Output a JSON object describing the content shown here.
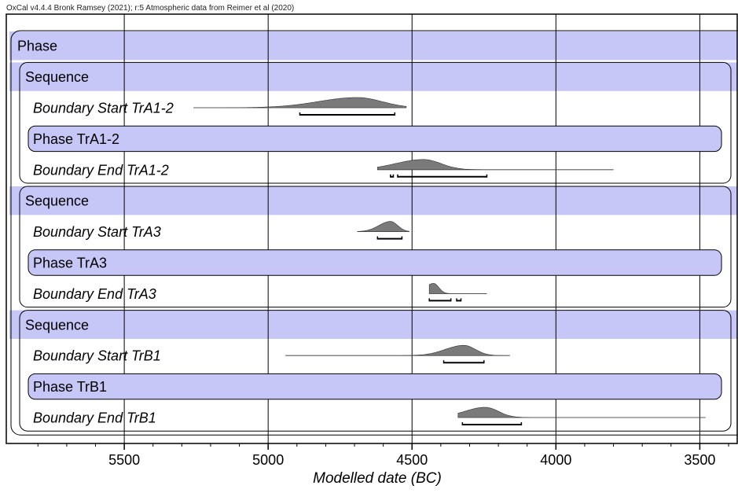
{
  "header_note": "OxCal v4.4.4 Bronk Ramsey (2021); r:5 Atmospheric data from Reimer et al (2020)",
  "chart_data": {
    "type": "area",
    "title": "",
    "xlabel": "Modelled date (BC)",
    "ylabel": "",
    "xlim": [
      5910,
      3370
    ],
    "x_ticks": [
      5500,
      5000,
      4500,
      4000,
      3500
    ],
    "grid": true,
    "colors": {
      "phase_fill": "#c6c6f7",
      "distribution_fill": "#7a7a7a",
      "line": "#000000"
    },
    "rows": [
      {
        "label": "Phase",
        "kind": "phase",
        "italic": false
      },
      {
        "label": "Sequence",
        "kind": "sequence",
        "italic": false
      },
      {
        "label": "Boundary Start TrA1-2",
        "kind": "boundary",
        "italic": true,
        "tail": [
          5260,
          4520
        ],
        "peak": 4690,
        "spread": 85,
        "hpd": [
          [
            4890,
            4560
          ]
        ]
      },
      {
        "label": "Phase TrA1-2",
        "kind": "phase",
        "italic": false
      },
      {
        "label": "Boundary End TrA1-2",
        "kind": "boundary",
        "italic": true,
        "tail": [
          4620,
          3800
        ],
        "peak": 4460,
        "spread": 60,
        "hpd": [
          [
            4575,
            4565
          ],
          [
            4550,
            4240
          ]
        ]
      },
      {
        "label": "Sequence",
        "kind": "sequence",
        "italic": false
      },
      {
        "label": "Boundary Start TrA3",
        "kind": "boundary",
        "italic": true,
        "tail": [
          4690,
          4510
        ],
        "peak": 4575,
        "spread": 25,
        "hpd": [
          [
            4620,
            4535
          ]
        ]
      },
      {
        "label": "Phase TrA3",
        "kind": "phase",
        "italic": false
      },
      {
        "label": "Boundary End TrA3",
        "kind": "boundary",
        "italic": true,
        "tail": [
          4440,
          4240
        ],
        "peak": 4425,
        "spread": 18,
        "hpd": [
          [
            4440,
            4365
          ],
          [
            4345,
            4330
          ]
        ]
      },
      {
        "label": "Sequence",
        "kind": "sequence",
        "italic": false
      },
      {
        "label": "Boundary Start TrB1",
        "kind": "boundary",
        "italic": true,
        "tail": [
          4940,
          4160
        ],
        "peak": 4320,
        "spread": 40,
        "hpd": [
          [
            4390,
            4250
          ]
        ]
      },
      {
        "label": "Phase TrB1",
        "kind": "phase",
        "italic": false
      },
      {
        "label": "Boundary End TrB1",
        "kind": "boundary",
        "italic": true,
        "tail": [
          4340,
          3480
        ],
        "peak": 4245,
        "spread": 45,
        "hpd": [
          [
            4325,
            4120
          ]
        ]
      }
    ]
  }
}
